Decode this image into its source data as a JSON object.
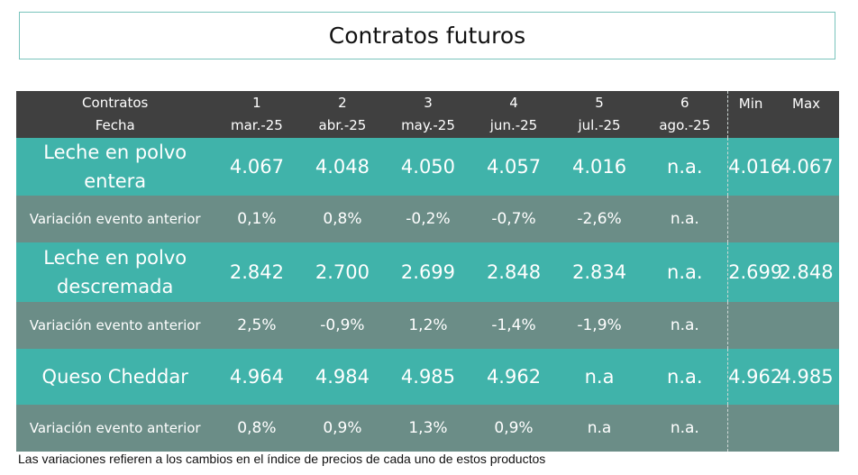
{
  "title": "Contratos futuros",
  "header": {
    "row_label_1": "Contratos",
    "row_label_2": "Fecha",
    "contracts": [
      "1",
      "2",
      "3",
      "4",
      "5",
      "6"
    ],
    "dates": [
      "mar.-25",
      "abr.-25",
      "may.-25",
      "jun.-25",
      "jul.-25",
      "ago.-25"
    ],
    "min_label": "Min",
    "max_label": "Max"
  },
  "rows": [
    {
      "label": "Leche en polvo entera",
      "values": [
        "4.067",
        "4.048",
        "4.050",
        "4.057",
        "4.016",
        "n.a."
      ],
      "min": "4.016",
      "max": "4.067"
    },
    {
      "label": "Variación evento anterior",
      "values": [
        "0,1%",
        "0,8%",
        "-0,2%",
        "-0,7%",
        "-2,6%",
        "n.a."
      ],
      "min": "",
      "max": ""
    },
    {
      "label": "Leche en polvo descremada",
      "values": [
        "2.842",
        "2.700",
        "2.699",
        "2.848",
        "2.834",
        "n.a."
      ],
      "min": "2.699",
      "max": "2.848"
    },
    {
      "label": "Variación evento anterior",
      "values": [
        "2,5%",
        "-0,9%",
        "1,2%",
        "-1,4%",
        "-1,9%",
        "n.a."
      ],
      "min": "",
      "max": ""
    },
    {
      "label": "Queso Cheddar",
      "values": [
        "4.964",
        "4.984",
        "4.985",
        "4.962",
        "n.a",
        "n.a."
      ],
      "min": "4.962",
      "max": "4.985"
    },
    {
      "label": "Variación evento anterior",
      "values": [
        "0,8%",
        "0,9%",
        "1,3%",
        "0,9%",
        "n.a",
        "n.a."
      ],
      "min": "",
      "max": ""
    }
  ],
  "footnote": "Las variaciones refieren a los cambios en el índice de precios de cada uno de estos productos",
  "colors": {
    "header_bg": "#404040",
    "product_row_bg": "#40b3aa",
    "variation_row_bg": "#6b8d87",
    "title_border": "#79c3bc"
  }
}
